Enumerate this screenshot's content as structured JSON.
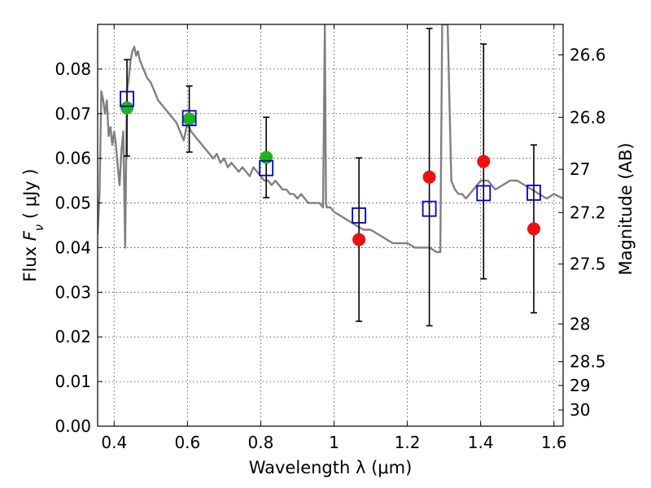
{
  "chart_data": {
    "type": "scatter",
    "xlabel": "Wavelength  λ (μm)",
    "ylabel": "Flux  F_ν  ( μJy )",
    "y2label": "Magnitude (AB)",
    "xlim": [
      0.355,
      1.625
    ],
    "ylim": [
      0.0,
      0.09
    ],
    "grid": true,
    "xticks": [
      0.4,
      0.6,
      0.8,
      1.0,
      1.2,
      1.4,
      1.6
    ],
    "xtick_labels": [
      "0.4",
      "0.6",
      "0.8",
      "1",
      "1.2",
      "1.4",
      "1.6"
    ],
    "yticks": [
      0.0,
      0.01,
      0.02,
      0.03,
      0.04,
      0.05,
      0.06,
      0.07,
      0.08
    ],
    "ytick_labels": [
      "0.00",
      "0.01",
      "0.02",
      "0.03",
      "0.04",
      "0.05",
      "0.06",
      "0.07",
      "0.08"
    ],
    "mag_ticks": [
      26.6,
      26.8,
      27,
      27.2,
      27.5,
      28,
      28.5,
      29,
      30
    ],
    "mag_tick_labels": [
      "26.6",
      "26.8",
      "27",
      "27.2",
      "27.5",
      "28",
      "28.5",
      "29",
      "30"
    ],
    "colors": {
      "model": "#808080",
      "observed_optical": "#1db51d",
      "observed_nir": "#ee1111",
      "model_photometry": "#0000cc",
      "error_bar": "#000000"
    },
    "series": [
      {
        "kind": "line",
        "x": [
          0.355,
          0.36,
          0.365,
          0.37,
          0.375,
          0.38,
          0.385,
          0.39,
          0.395,
          0.4,
          0.405,
          0.41,
          0.415,
          0.42,
          0.425,
          0.43,
          0.435,
          0.44,
          0.445,
          0.45,
          0.455,
          0.46,
          0.465,
          0.47,
          0.48,
          0.49,
          0.5,
          0.51,
          0.52,
          0.53,
          0.54,
          0.55,
          0.56,
          0.57,
          0.58,
          0.59,
          0.6,
          0.61,
          0.62,
          0.63,
          0.64,
          0.65,
          0.66,
          0.67,
          0.68,
          0.69,
          0.7,
          0.71,
          0.72,
          0.73,
          0.74,
          0.75,
          0.76,
          0.77,
          0.78,
          0.79,
          0.8,
          0.81,
          0.82,
          0.83,
          0.84,
          0.85,
          0.86,
          0.87,
          0.88,
          0.89,
          0.9,
          0.91,
          0.92,
          0.93,
          0.94,
          0.95,
          0.96,
          0.97,
          0.975,
          0.978,
          0.98,
          0.982,
          0.985,
          0.99,
          1.0,
          1.02,
          1.04,
          1.06,
          1.08,
          1.1,
          1.12,
          1.14,
          1.16,
          1.18,
          1.2,
          1.22,
          1.24,
          1.26,
          1.28,
          1.285,
          1.29,
          1.295,
          1.3,
          1.305,
          1.31,
          1.32,
          1.33,
          1.34,
          1.35,
          1.36,
          1.37,
          1.38,
          1.39,
          1.4,
          1.41,
          1.42,
          1.44,
          1.46,
          1.48,
          1.5,
          1.52,
          1.54,
          1.56,
          1.58,
          1.6,
          1.625
        ],
        "y": [
          0.043,
          0.052,
          0.075,
          0.073,
          0.07,
          0.073,
          0.065,
          0.067,
          0.063,
          0.066,
          0.063,
          0.058,
          0.054,
          0.062,
          0.066,
          0.04,
          0.075,
          0.078,
          0.082,
          0.084,
          0.085,
          0.083,
          0.084,
          0.082,
          0.08,
          0.078,
          0.077,
          0.075,
          0.073,
          0.072,
          0.071,
          0.07,
          0.069,
          0.068,
          0.066,
          0.064,
          0.068,
          0.066,
          0.065,
          0.064,
          0.063,
          0.062,
          0.061,
          0.06,
          0.061,
          0.059,
          0.06,
          0.058,
          0.059,
          0.058,
          0.057,
          0.058,
          0.057,
          0.056,
          0.058,
          0.057,
          0.056,
          0.055,
          0.055,
          0.054,
          0.055,
          0.054,
          0.053,
          0.053,
          0.052,
          0.052,
          0.051,
          0.052,
          0.051,
          0.05,
          0.05,
          0.05,
          0.05,
          0.049,
          0.09,
          0.05,
          0.049,
          0.049,
          0.049,
          0.049,
          0.048,
          0.047,
          0.046,
          0.045,
          0.044,
          0.044,
          0.043,
          0.042,
          0.041,
          0.041,
          0.041,
          0.04,
          0.04,
          0.04,
          0.039,
          0.039,
          0.039,
          0.09,
          0.09,
          0.09,
          0.09,
          0.055,
          0.053,
          0.052,
          0.052,
          0.051,
          0.052,
          0.053,
          0.054,
          0.055,
          0.055,
          0.055,
          0.053,
          0.054,
          0.055,
          0.055,
          0.054,
          0.053,
          0.052,
          0.051,
          0.052,
          0.051
        ]
      },
      {
        "kind": "points",
        "marker": "circle",
        "x": [
          0.435,
          0.605,
          0.815
        ],
        "y": [
          0.0713,
          0.0688,
          0.0602
        ],
        "yerr": [
          0.0108,
          0.0074,
          0.009
        ]
      },
      {
        "kind": "points",
        "marker": "circle",
        "x": [
          1.068,
          1.26,
          1.408,
          1.545
        ],
        "y": [
          0.0418,
          0.0558,
          0.0593,
          0.0442
        ],
        "yerr": [
          0.0183,
          0.0333,
          0.0263,
          0.0188
        ]
      },
      {
        "kind": "points",
        "marker": "open-square",
        "x": [
          0.435,
          0.605,
          0.815,
          1.068,
          1.26,
          1.408,
          1.545
        ],
        "y": [
          0.0733,
          0.069,
          0.0578,
          0.0472,
          0.0487,
          0.0522,
          0.0523
        ]
      }
    ]
  }
}
